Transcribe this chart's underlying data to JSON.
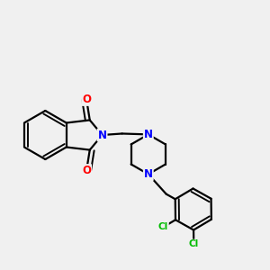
{
  "background_color": "#f0f0f0",
  "bond_color": "#000000",
  "bond_width": 1.6,
  "atom_colors": {
    "N": "#0000ff",
    "O": "#ff0000",
    "Cl": "#00bb00",
    "C": "#000000"
  },
  "font_size_atom": 8.5,
  "font_size_cl": 7.5
}
